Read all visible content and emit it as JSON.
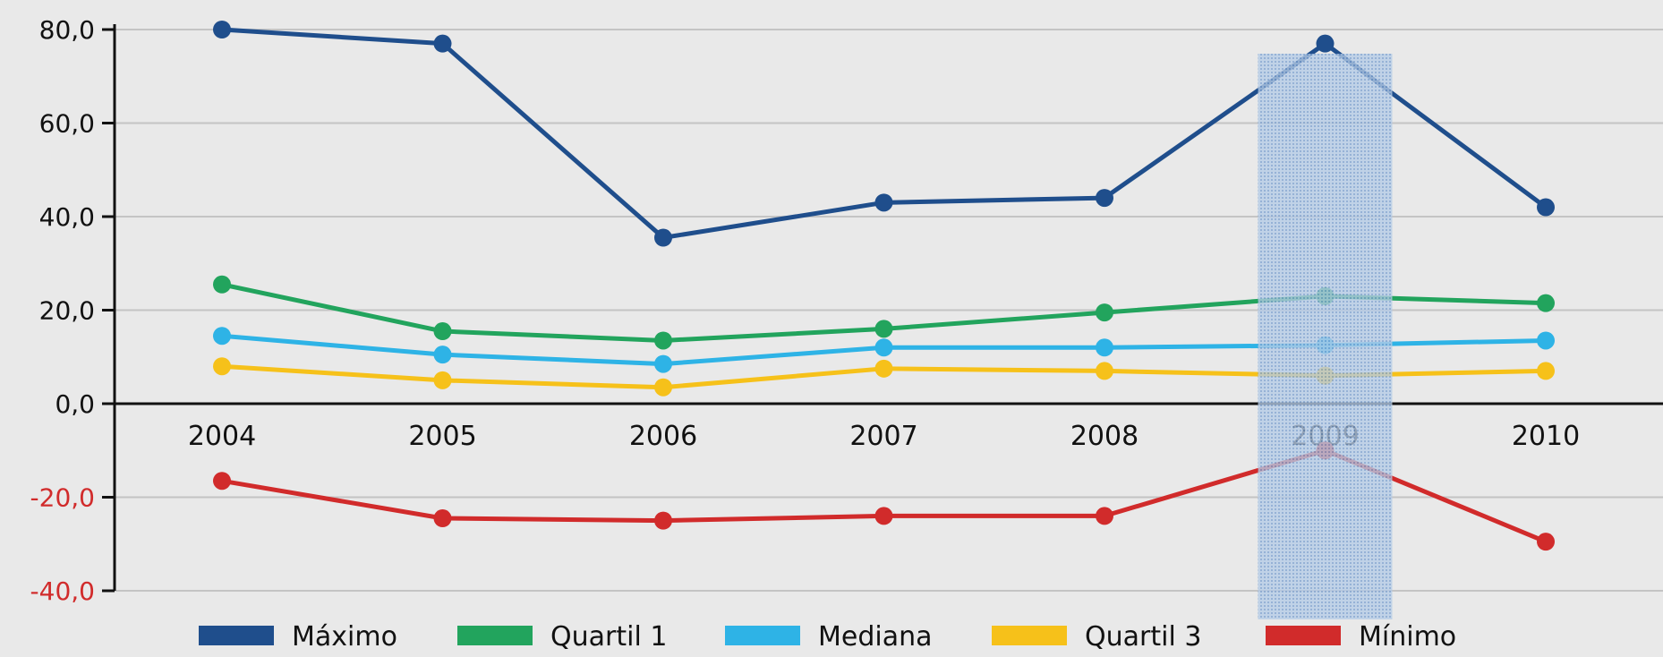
{
  "chart_data": {
    "type": "line",
    "categories": [
      "2004",
      "2005",
      "2006",
      "2007",
      "2008",
      "2009",
      "2010"
    ],
    "ylim": [
      -40,
      80
    ],
    "yticks": [
      80,
      60,
      40,
      20,
      0,
      -20,
      -40
    ],
    "ytick_labels": [
      "80,0",
      "60,0",
      "40,0",
      "20,0",
      "0,0",
      "-20,0",
      "-40,0"
    ],
    "grid": true,
    "legend_position": "bottom",
    "highlight_category": "2009",
    "series": [
      {
        "name": "Máximo",
        "color": "#1f4e8c",
        "values": [
          80.0,
          77.0,
          35.5,
          43.0,
          44.0,
          77.0,
          42.0
        ]
      },
      {
        "name": "Quartil 1",
        "color": "#22a45d",
        "values": [
          25.5,
          15.5,
          13.5,
          16.0,
          19.5,
          23.0,
          21.5
        ]
      },
      {
        "name": "Mediana",
        "color": "#2eb3e6",
        "values": [
          14.5,
          10.5,
          8.5,
          12.0,
          12.0,
          12.5,
          13.5
        ]
      },
      {
        "name": "Quartil 3",
        "color": "#f6c11a",
        "values": [
          8.0,
          5.0,
          3.5,
          7.5,
          7.0,
          6.0,
          7.0
        ]
      },
      {
        "name": "Mínimo",
        "color": "#d12b2b",
        "values": [
          -16.5,
          -24.5,
          -25.0,
          -24.0,
          -24.0,
          -10.0,
          -29.5
        ]
      }
    ]
  }
}
